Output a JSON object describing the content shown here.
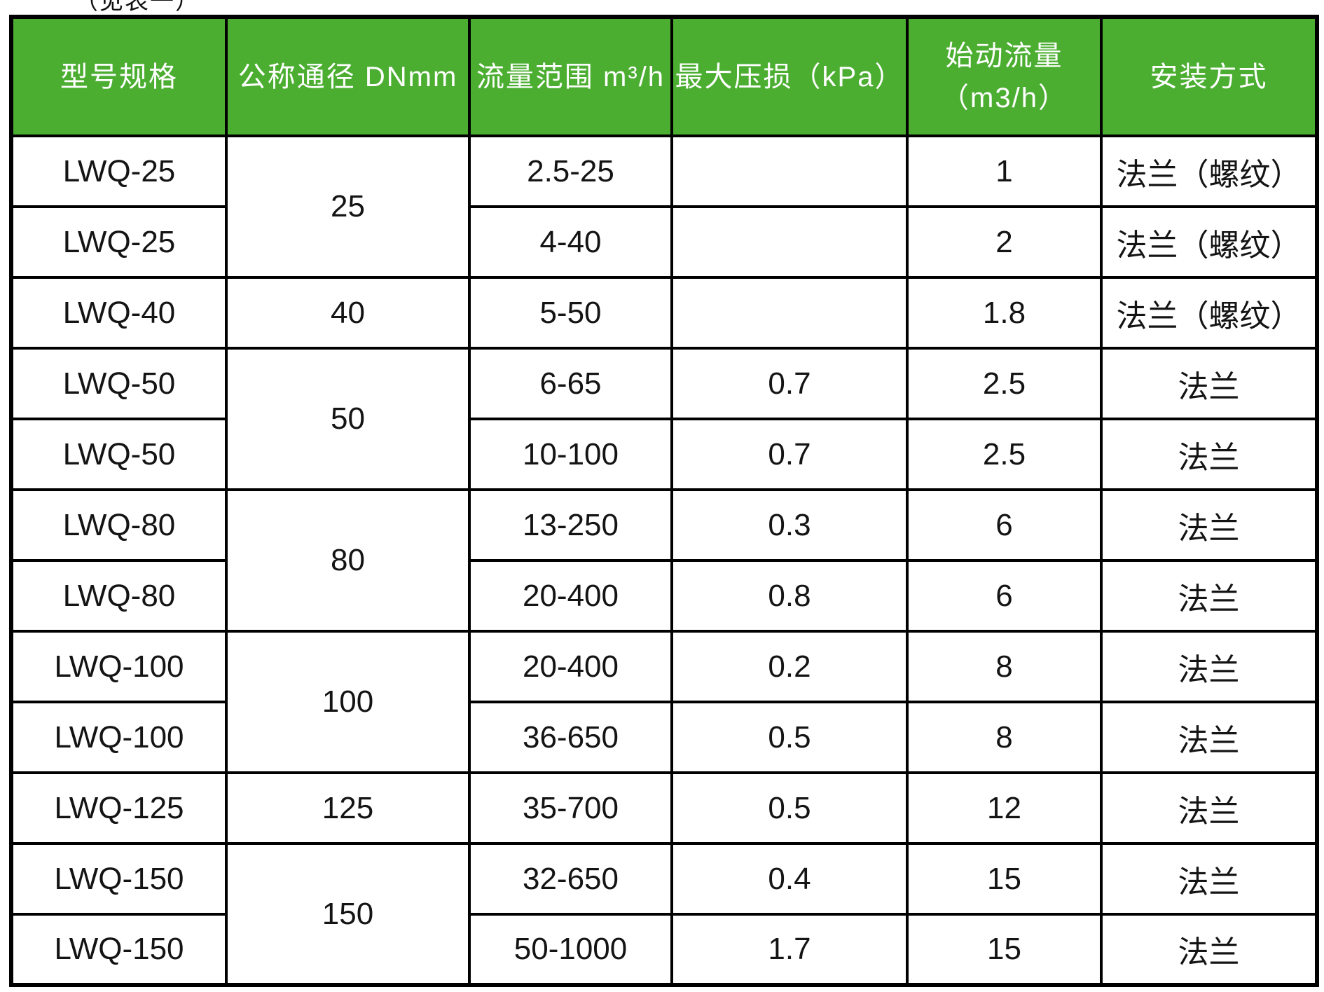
{
  "page": {
    "caption": "（见表一）"
  },
  "colors": {
    "header_bg": "#4BAE31",
    "header_text": "#FFFFFF",
    "border": "#000000",
    "text": "#141414",
    "row_bg": "#FFFFFF"
  },
  "table": {
    "columns": [
      {
        "label": "型号规格"
      },
      {
        "label": "公称通径 DNmm"
      },
      {
        "label": "流量范围 m³/h"
      },
      {
        "label": "最大压损（kPa）"
      },
      {
        "label": "始动流量",
        "sublabel": "（m3/h）"
      },
      {
        "label": "安装方式"
      }
    ],
    "rows": [
      {
        "model": "LWQ-25",
        "dn": "25",
        "dn_rowspan": 2,
        "flow_range": "2.5-25",
        "max_pressure_loss": "",
        "start_flow": "1",
        "install": "法兰（螺纹）"
      },
      {
        "model": "LWQ-25",
        "dn": null,
        "flow_range": "4-40",
        "max_pressure_loss": "",
        "start_flow": "2",
        "install": "法兰（螺纹）"
      },
      {
        "model": "LWQ-40",
        "dn": "40",
        "dn_rowspan": 1,
        "flow_range": "5-50",
        "max_pressure_loss": "",
        "start_flow": "1.8",
        "install": "法兰（螺纹）"
      },
      {
        "model": "LWQ-50",
        "dn": "50",
        "dn_rowspan": 2,
        "flow_range": "6-65",
        "max_pressure_loss": "0.7",
        "start_flow": "2.5",
        "install": "法兰"
      },
      {
        "model": "LWQ-50",
        "dn": null,
        "flow_range": "10-100",
        "max_pressure_loss": "0.7",
        "start_flow": "2.5",
        "install": "法兰"
      },
      {
        "model": "LWQ-80",
        "dn": "80",
        "dn_rowspan": 2,
        "flow_range": "13-250",
        "max_pressure_loss": "0.3",
        "start_flow": "6",
        "install": "法兰"
      },
      {
        "model": "LWQ-80",
        "dn": null,
        "flow_range": "20-400",
        "max_pressure_loss": "0.8",
        "start_flow": "6",
        "install": "法兰"
      },
      {
        "model": "LWQ-100",
        "dn": "100",
        "dn_rowspan": 2,
        "flow_range": "20-400",
        "max_pressure_loss": "0.2",
        "start_flow": "8",
        "install": "法兰"
      },
      {
        "model": "LWQ-100",
        "dn": null,
        "flow_range": "36-650",
        "max_pressure_loss": "0.5",
        "start_flow": "8",
        "install": "法兰"
      },
      {
        "model": "LWQ-125",
        "dn": "125",
        "dn_rowspan": 1,
        "flow_range": "35-700",
        "max_pressure_loss": "0.5",
        "start_flow": "12",
        "install": "法兰"
      },
      {
        "model": "LWQ-150",
        "dn": "150",
        "dn_rowspan": 2,
        "flow_range": "32-650",
        "max_pressure_loss": "0.4",
        "start_flow": "15",
        "install": "法兰"
      },
      {
        "model": "LWQ-150",
        "dn": null,
        "flow_range": "50-1000",
        "max_pressure_loss": "1.7",
        "start_flow": "15",
        "install": "法兰"
      }
    ]
  }
}
